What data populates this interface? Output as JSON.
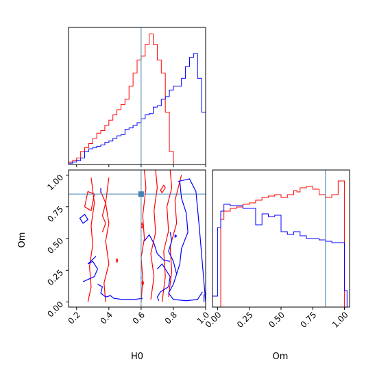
{
  "chart_data": [
    {
      "type": "histogram",
      "panel": "H0-marginal",
      "xlim": [
        0.15,
        1.0
      ],
      "xticks": [
        0.2,
        0.4,
        0.6,
        0.8,
        1.0
      ],
      "truth": 0.6,
      "series": [
        {
          "color": "#ff0000",
          "bin_edges": [
            0.15,
            0.175,
            0.2,
            0.225,
            0.25,
            0.275,
            0.3,
            0.325,
            0.35,
            0.375,
            0.4,
            0.425,
            0.45,
            0.475,
            0.5,
            0.525,
            0.55,
            0.575,
            0.6,
            0.625,
            0.65,
            0.675,
            0.7,
            0.725,
            0.75,
            0.775,
            0.8,
            0.825
          ],
          "values": [
            0.02,
            0.03,
            0.05,
            0.1,
            0.13,
            0.16,
            0.2,
            0.24,
            0.26,
            0.3,
            0.34,
            0.38,
            0.42,
            0.46,
            0.5,
            0.6,
            0.7,
            0.8,
            0.83,
            0.92,
            1.0,
            0.92,
            0.8,
            0.7,
            0.4,
            0.1,
            0.0
          ]
        },
        {
          "color": "#0000ff",
          "bin_edges": [
            0.15,
            0.175,
            0.2,
            0.225,
            0.25,
            0.275,
            0.3,
            0.325,
            0.35,
            0.375,
            0.4,
            0.425,
            0.45,
            0.475,
            0.5,
            0.525,
            0.55,
            0.575,
            0.6,
            0.625,
            0.65,
            0.675,
            0.7,
            0.725,
            0.75,
            0.775,
            0.8,
            0.825,
            0.85,
            0.875,
            0.9,
            0.925,
            0.95,
            0.975,
            1.0
          ],
          "values": [
            0.01,
            0.02,
            0.03,
            0.05,
            0.1,
            0.12,
            0.13,
            0.14,
            0.15,
            0.17,
            0.18,
            0.2,
            0.22,
            0.23,
            0.27,
            0.28,
            0.3,
            0.32,
            0.35,
            0.38,
            0.39,
            0.44,
            0.45,
            0.5,
            0.52,
            0.57,
            0.6,
            0.6,
            0.66,
            0.75,
            0.82,
            0.85,
            0.66,
            0.4
          ]
        }
      ]
    },
    {
      "type": "contour",
      "panel": "H0-Om-joint",
      "xlabel": "H0",
      "ylabel": "Om",
      "xlim": [
        0.15,
        1.0
      ],
      "ylim": [
        -0.04,
        1.04
      ],
      "xticks": [
        0.2,
        0.4,
        0.6,
        0.8,
        1.0
      ],
      "yticks": [
        0.0,
        0.25,
        0.5,
        0.75,
        1.0
      ],
      "truth": {
        "x": 0.6,
        "y": 0.85
      },
      "series": [
        {
          "color": "#ff0000",
          "contours": [
            [
              [
                0.27,
                0.0
              ],
              [
                0.29,
                0.12
              ],
              [
                0.28,
                0.28
              ],
              [
                0.3,
                0.45
              ],
              [
                0.29,
                0.6
              ],
              [
                0.31,
                0.78
              ],
              [
                0.29,
                0.98
              ]
            ],
            [
              [
                0.38,
                0.0
              ],
              [
                0.37,
                0.15
              ],
              [
                0.4,
                0.3
              ],
              [
                0.38,
                0.48
              ],
              [
                0.4,
                0.62
              ],
              [
                0.38,
                0.78
              ],
              [
                0.4,
                0.98
              ]
            ],
            [
              [
                0.25,
                0.75
              ],
              [
                0.29,
                0.72
              ],
              [
                0.31,
                0.85
              ],
              [
                0.27,
                0.87
              ],
              [
                0.25,
                0.75
              ]
            ],
            [
              [
                0.35,
                0.87
              ],
              [
                0.38,
                0.78
              ],
              [
                0.36,
                0.68
              ],
              [
                0.38,
                0.62
              ],
              [
                0.36,
                0.55
              ]
            ],
            [
              [
                0.6,
                0.0
              ],
              [
                0.61,
                0.18
              ],
              [
                0.6,
                0.35
              ],
              [
                0.62,
                0.5
              ],
              [
                0.61,
                0.68
              ],
              [
                0.63,
                0.9
              ],
              [
                0.62,
                1.04
              ]
            ],
            [
              [
                0.66,
                0.02
              ],
              [
                0.68,
                0.2
              ],
              [
                0.66,
                0.38
              ],
              [
                0.69,
                0.55
              ],
              [
                0.68,
                0.72
              ],
              [
                0.7,
                0.9
              ],
              [
                0.69,
                1.04
              ]
            ],
            [
              [
                0.73,
                0.0
              ],
              [
                0.75,
                0.2
              ],
              [
                0.74,
                0.4
              ],
              [
                0.77,
                0.56
              ],
              [
                0.76,
                0.75
              ],
              [
                0.79,
                0.9
              ],
              [
                0.78,
                1.04
              ]
            ],
            [
              [
                0.77,
                0.04
              ],
              [
                0.79,
                0.24
              ],
              [
                0.78,
                0.44
              ],
              [
                0.82,
                0.62
              ],
              [
                0.81,
                0.8
              ],
              [
                0.85,
                1.0
              ]
            ],
            [
              [
                0.73,
                0.86
              ],
              [
                0.75,
                0.9
              ],
              [
                0.74,
                0.92
              ],
              [
                0.72,
                0.88
              ],
              [
                0.73,
                0.86
              ]
            ],
            [
              [
                0.45,
                0.31
              ],
              [
                0.455,
                0.33
              ],
              [
                0.45,
                0.34
              ],
              [
                0.445,
                0.33
              ],
              [
                0.45,
                0.31
              ]
            ],
            [
              [
                0.605,
                0.58
              ],
              [
                0.61,
                0.6
              ],
              [
                0.605,
                0.62
              ],
              [
                0.6,
                0.6
              ],
              [
                0.605,
                0.58
              ]
            ],
            [
              [
                0.61,
                0.13
              ],
              [
                0.615,
                0.15
              ],
              [
                0.61,
                0.17
              ],
              [
                0.605,
                0.15
              ],
              [
                0.61,
                0.13
              ]
            ]
          ]
        },
        {
          "color": "#0000ff",
          "contours": [
            [
              [
                0.24,
                0.62
              ],
              [
                0.27,
                0.65
              ],
              [
                0.25,
                0.69
              ],
              [
                0.22,
                0.66
              ],
              [
                0.24,
                0.62
              ]
            ],
            [
              [
                0.24,
                0.16
              ],
              [
                0.31,
                0.2
              ],
              [
                0.33,
                0.26
              ],
              [
                0.3,
                0.32
              ],
              [
                0.27,
                0.3
              ],
              [
                0.32,
                0.36
              ]
            ],
            [
              [
                0.33,
                0.14
              ],
              [
                0.36,
                0.12
              ],
              [
                0.35,
                0.07
              ],
              [
                0.38,
                0.04
              ],
              [
                0.41,
                0.05
              ],
              [
                0.43,
                0.03
              ],
              [
                0.48,
                0.02
              ],
              [
                0.56,
                0.02
              ],
              [
                0.61,
                0.03
              ]
            ],
            [
              [
                0.35,
                0.9
              ],
              [
                0.35,
                0.86
              ]
            ],
            [
              [
                0.6,
                0.18
              ],
              [
                0.6,
                0.2
              ]
            ],
            [
              [
                0.62,
                0.48
              ],
              [
                0.65,
                0.53
              ],
              [
                0.68,
                0.46
              ],
              [
                0.7,
                0.38
              ],
              [
                0.74,
                0.33
              ],
              [
                0.78,
                0.32
              ]
            ],
            [
              [
                0.7,
                0.26
              ],
              [
                0.73,
                0.3
              ],
              [
                0.78,
                0.2
              ],
              [
                0.77,
                0.12
              ],
              [
                0.72,
                0.08
              ],
              [
                0.7,
                0.04
              ],
              [
                0.71,
                0.01
              ]
            ],
            [
              [
                0.78,
                0.55
              ],
              [
                0.79,
                0.48
              ],
              [
                0.77,
                0.4
              ],
              [
                0.8,
                0.32
              ],
              [
                0.82,
                0.22
              ]
            ],
            [
              [
                0.81,
                0.53
              ],
              [
                0.82,
                0.52
              ],
              [
                0.81,
                0.51
              ],
              [
                0.81,
                0.53
              ]
            ],
            [
              [
                0.83,
                0.95
              ],
              [
                0.9,
                0.97
              ],
              [
                0.94,
                0.87
              ],
              [
                0.96,
                0.6
              ],
              [
                0.98,
                0.3
              ],
              [
                1.0,
                0.0
              ]
            ],
            [
              [
                0.84,
                0.95
              ],
              [
                0.85,
                0.82
              ],
              [
                0.88,
                0.7
              ],
              [
                0.89,
                0.55
              ],
              [
                0.85,
                0.42
              ],
              [
                0.84,
                0.3
              ],
              [
                0.82,
                0.22
              ],
              [
                0.8,
                0.14
              ],
              [
                0.77,
                0.07
              ],
              [
                0.8,
                0.02
              ],
              [
                0.88,
                0.01
              ],
              [
                0.95,
                0.02
              ],
              [
                0.98,
                0.08
              ]
            ],
            [
              [
                0.99,
                0.0
              ],
              [
                0.99,
                0.06
              ]
            ]
          ]
        }
      ]
    },
    {
      "type": "histogram",
      "panel": "Om-marginal",
      "xlabel": "Om",
      "xlim": [
        -0.04,
        1.04
      ],
      "xticks": [
        0.0,
        0.25,
        0.5,
        0.75,
        1.0
      ],
      "truth": 0.85,
      "series": [
        {
          "color": "#ff0000",
          "bin_edges": [
            0.0,
            0.025,
            0.05,
            0.1,
            0.15,
            0.2,
            0.25,
            0.3,
            0.35,
            0.4,
            0.45,
            0.5,
            0.55,
            0.6,
            0.625,
            0.65,
            0.7,
            0.75,
            0.8,
            0.85,
            0.9,
            0.95,
            1.0
          ],
          "values": [
            0.0,
            0.64,
            0.7,
            0.72,
            0.73,
            0.75,
            0.76,
            0.78,
            0.8,
            0.81,
            0.82,
            0.8,
            0.82,
            0.85,
            0.84,
            0.87,
            0.88,
            0.86,
            0.82,
            0.8,
            0.82,
            0.92
          ]
        },
        {
          "color": "#0000ff",
          "bin_edges": [
            -0.04,
            0.0,
            0.025,
            0.05,
            0.1,
            0.15,
            0.2,
            0.25,
            0.3,
            0.35,
            0.4,
            0.45,
            0.5,
            0.55,
            0.6,
            0.65,
            0.7,
            0.75,
            0.8,
            0.85,
            0.9,
            0.95,
            1.0,
            1.02
          ],
          "values": [
            0.08,
            0.58,
            0.7,
            0.75,
            0.74,
            0.74,
            0.72,
            0.72,
            0.6,
            0.68,
            0.66,
            0.67,
            0.55,
            0.53,
            0.55,
            0.52,
            0.5,
            0.5,
            0.49,
            0.48,
            0.47,
            0.47,
            0.12
          ]
        }
      ]
    }
  ]
}
